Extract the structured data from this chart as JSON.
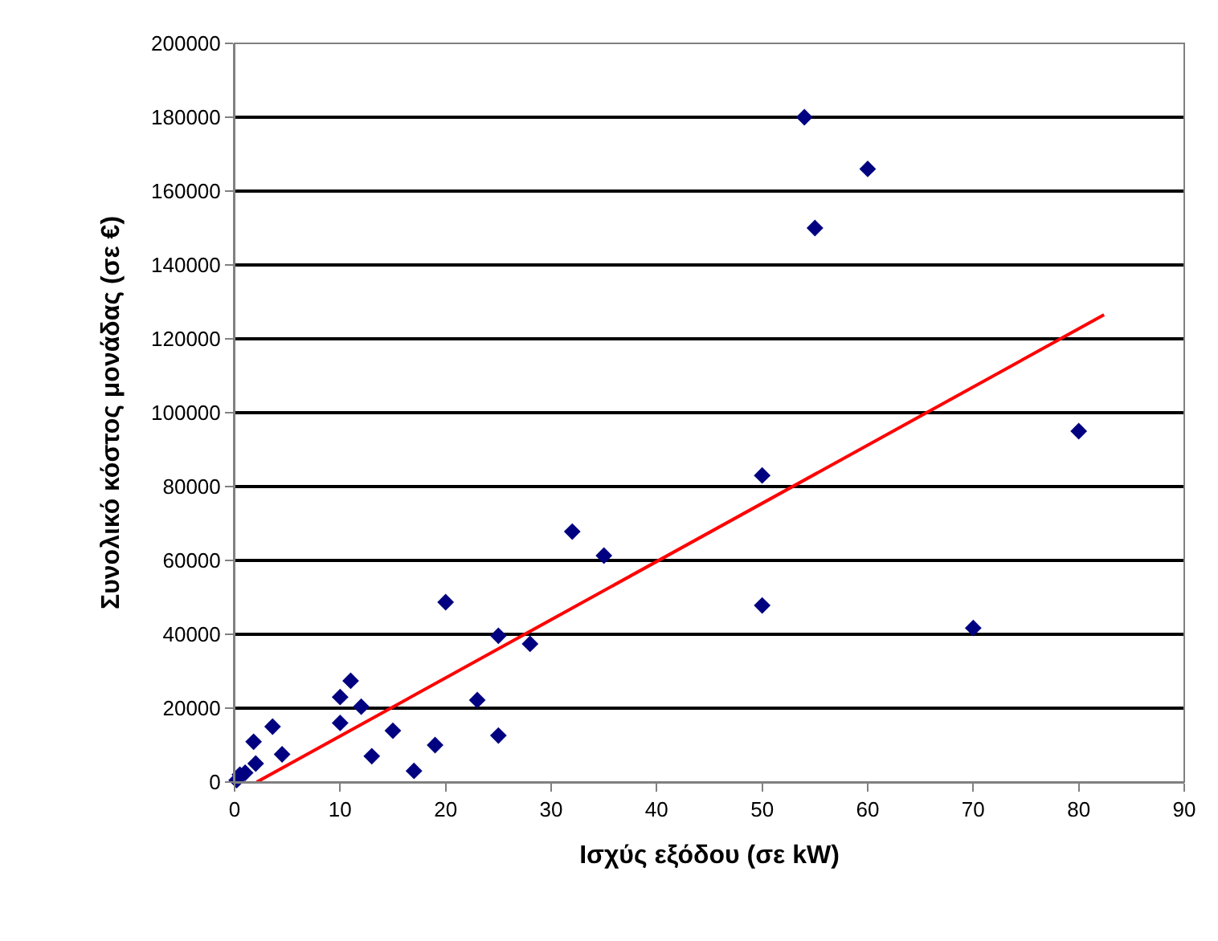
{
  "chart_data": {
    "type": "scatter",
    "xlabel": "Ισχύς εξόδου (σε kW)",
    "ylabel": "Συνολικό κόστος μονάδας (σε €)",
    "xlim": [
      0,
      90
    ],
    "xticks": [
      0,
      10,
      20,
      30,
      40,
      50,
      60,
      70,
      80,
      90
    ],
    "ylim": [
      0,
      200000
    ],
    "yticks": [
      0,
      20000,
      40000,
      60000,
      80000,
      100000,
      120000,
      140000,
      160000,
      180000,
      200000
    ],
    "grid": "y",
    "marker": "diamond",
    "series": [
      {
        "color": "#000080",
        "x": [
          0.2,
          0.5,
          1,
          1.8,
          2,
          3.6,
          4.5,
          10,
          10,
          11,
          12,
          13,
          15,
          17,
          19,
          20,
          23,
          25,
          25,
          28,
          32,
          35,
          50,
          50,
          54,
          55,
          60,
          70,
          80
        ],
        "values": [
          500,
          2000,
          2500,
          10900,
          5000,
          15000,
          7500,
          23000,
          16000,
          27400,
          20400,
          7000,
          13900,
          3000,
          10000,
          48700,
          22200,
          39600,
          12600,
          37400,
          67800,
          61300,
          83000,
          47800,
          180000,
          150000,
          166000,
          41700,
          95000
        ]
      },
      {
        "type": "line",
        "marker": "none",
        "color": "#ff0000",
        "x": [
          2.1,
          82.4
        ],
        "values": [
          0,
          126500
        ]
      }
    ]
  }
}
